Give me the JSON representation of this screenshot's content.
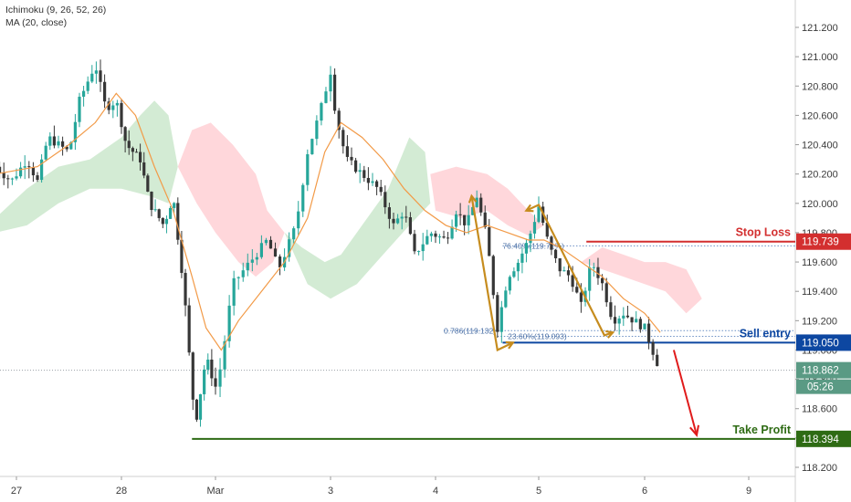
{
  "legend": {
    "ichimoku": "Ichimoku (9, 26, 52, 26)",
    "ma": "MA (20, close)"
  },
  "colors": {
    "up": "#26a69a",
    "down": "#363636",
    "ma": "#f29a47",
    "cloud_bull": "#c8e6c9",
    "cloud_bear": "#ffcdd2",
    "stop": "#d32f2f",
    "entry": "#0d47a1",
    "profit": "#2e6b14",
    "fib": "#6b8fc4",
    "pattern": "#c68c1e",
    "arrow": "#e01b1b",
    "last_price": "#5a9a84"
  },
  "chart_data": {
    "type": "candlestick",
    "y_axis_ticks": [
      "121.200",
      "121.000",
      "120.800",
      "120.600",
      "120.400",
      "120.200",
      "120.000",
      "119.800",
      "119.600",
      "119.400",
      "119.200",
      "119.000",
      "118.800",
      "118.600",
      "118.400",
      "118.200"
    ],
    "ylim": [
      118.1,
      121.3
    ],
    "x_axis_ticks": [
      {
        "label": "27",
        "x": 0
      },
      {
        "label": "28",
        "x": 1
      },
      {
        "label": "Mar",
        "x": 2
      },
      {
        "label": "3",
        "x": 3
      },
      {
        "label": "4",
        "x": 4
      },
      {
        "label": "5",
        "x": 5
      },
      {
        "label": "6",
        "x": 6
      },
      {
        "label": "9",
        "x": 7
      }
    ],
    "xlim": [
      -0.2,
      7.4
    ],
    "close_path": [
      [
        -0.2,
        120.25
      ],
      [
        -0.05,
        120.15
      ],
      [
        0.1,
        120.3
      ],
      [
        0.2,
        120.15
      ],
      [
        0.3,
        120.45
      ],
      [
        0.5,
        120.35
      ],
      [
        0.6,
        120.7
      ],
      [
        0.75,
        120.95
      ],
      [
        0.85,
        120.65
      ],
      [
        0.95,
        120.7
      ],
      [
        1.05,
        120.4
      ],
      [
        1.2,
        120.3
      ],
      [
        1.3,
        120.0
      ],
      [
        1.45,
        119.85
      ],
      [
        1.55,
        120.05
      ],
      [
        1.65,
        119.5
      ],
      [
        1.7,
        119.15
      ],
      [
        1.75,
        118.7
      ],
      [
        1.8,
        118.55
      ],
      [
        1.9,
        118.95
      ],
      [
        2.0,
        118.75
      ],
      [
        2.05,
        118.9
      ],
      [
        2.15,
        119.45
      ],
      [
        2.3,
        119.6
      ],
      [
        2.45,
        119.75
      ],
      [
        2.55,
        119.55
      ],
      [
        2.7,
        119.85
      ],
      [
        2.8,
        120.35
      ],
      [
        2.9,
        120.6
      ],
      [
        3.0,
        120.9
      ],
      [
        3.05,
        120.6
      ],
      [
        3.15,
        120.3
      ],
      [
        3.3,
        120.2
      ],
      [
        3.45,
        120.1
      ],
      [
        3.6,
        119.85
      ],
      [
        3.7,
        119.95
      ],
      [
        3.8,
        119.65
      ],
      [
        3.95,
        119.8
      ],
      [
        4.1,
        119.75
      ],
      [
        4.2,
        119.95
      ],
      [
        4.3,
        119.85
      ],
      [
        4.4,
        120.05
      ],
      [
        4.5,
        119.75
      ],
      [
        4.6,
        119.15
      ],
      [
        4.7,
        119.5
      ],
      [
        4.8,
        119.6
      ],
      [
        4.9,
        119.75
      ],
      [
        5.0,
        119.98
      ],
      [
        5.1,
        119.7
      ],
      [
        5.2,
        119.55
      ],
      [
        5.3,
        119.5
      ],
      [
        5.4,
        119.3
      ],
      [
        5.5,
        119.6
      ],
      [
        5.6,
        119.45
      ],
      [
        5.7,
        119.2
      ],
      [
        5.8,
        119.25
      ],
      [
        5.9,
        119.2
      ],
      [
        6.0,
        119.15
      ],
      [
        6.1,
        118.95
      ],
      [
        6.15,
        118.862
      ]
    ],
    "ma_path": [
      [
        -0.2,
        120.2
      ],
      [
        0.2,
        120.25
      ],
      [
        0.5,
        120.4
      ],
      [
        0.75,
        120.55
      ],
      [
        0.95,
        120.75
      ],
      [
        1.15,
        120.6
      ],
      [
        1.35,
        120.25
      ],
      [
        1.55,
        119.95
      ],
      [
        1.75,
        119.5
      ],
      [
        1.9,
        119.15
      ],
      [
        2.05,
        119.0
      ],
      [
        2.2,
        119.2
      ],
      [
        2.4,
        119.4
      ],
      [
        2.6,
        119.6
      ],
      [
        2.8,
        119.9
      ],
      [
        2.95,
        120.35
      ],
      [
        3.1,
        120.55
      ],
      [
        3.3,
        120.45
      ],
      [
        3.5,
        120.3
      ],
      [
        3.7,
        120.1
      ],
      [
        3.9,
        119.95
      ],
      [
        4.1,
        119.85
      ],
      [
        4.3,
        119.8
      ],
      [
        4.5,
        119.85
      ],
      [
        4.7,
        119.8
      ],
      [
        4.9,
        119.75
      ],
      [
        5.05,
        119.75
      ],
      [
        5.2,
        119.7
      ],
      [
        5.4,
        119.6
      ],
      [
        5.6,
        119.5
      ],
      [
        5.8,
        119.35
      ],
      [
        6.0,
        119.25
      ],
      [
        6.15,
        119.12
      ]
    ],
    "cloud": [
      {
        "trend": "bull",
        "points": [
          [
            -0.2,
            119.9
          ],
          [
            0.1,
            120.1
          ],
          [
            0.4,
            120.25
          ],
          [
            0.7,
            120.3
          ],
          [
            1.0,
            120.45
          ],
          [
            1.2,
            120.6
          ],
          [
            1.35,
            120.7
          ],
          [
            1.5,
            120.6
          ],
          [
            1.6,
            120.25
          ],
          [
            1.5,
            120.0
          ],
          [
            1.3,
            120.05
          ],
          [
            1.0,
            120.1
          ],
          [
            0.7,
            120.1
          ],
          [
            0.4,
            120.0
          ],
          [
            0.1,
            119.85
          ],
          [
            -0.2,
            119.8
          ]
        ]
      },
      {
        "trend": "bear",
        "points": [
          [
            1.6,
            120.25
          ],
          [
            1.75,
            120.5
          ],
          [
            1.95,
            120.55
          ],
          [
            2.15,
            120.4
          ],
          [
            2.35,
            120.2
          ],
          [
            2.45,
            119.95
          ],
          [
            2.6,
            119.8
          ],
          [
            2.5,
            119.6
          ],
          [
            2.35,
            119.5
          ],
          [
            2.2,
            119.6
          ],
          [
            2.0,
            119.8
          ],
          [
            1.8,
            120.0
          ]
        ]
      },
      {
        "trend": "bull",
        "points": [
          [
            2.6,
            119.8
          ],
          [
            2.75,
            119.7
          ],
          [
            2.95,
            119.6
          ],
          [
            3.1,
            119.65
          ],
          [
            3.3,
            119.85
          ],
          [
            3.55,
            120.1
          ],
          [
            3.75,
            120.45
          ],
          [
            3.9,
            120.35
          ],
          [
            3.95,
            120.0
          ],
          [
            3.75,
            119.85
          ],
          [
            3.5,
            119.65
          ],
          [
            3.25,
            119.45
          ],
          [
            3.0,
            119.35
          ],
          [
            2.8,
            119.45
          ]
        ]
      },
      {
        "trend": "bear",
        "points": [
          [
            3.95,
            120.2
          ],
          [
            4.2,
            120.25
          ],
          [
            4.5,
            120.2
          ],
          [
            4.7,
            120.1
          ],
          [
            4.9,
            119.95
          ],
          [
            5.05,
            119.85
          ],
          [
            4.9,
            119.78
          ],
          [
            4.7,
            119.85
          ],
          [
            4.5,
            119.95
          ],
          [
            4.25,
            119.9
          ],
          [
            4.0,
            119.95
          ]
        ]
      },
      {
        "trend": "bear",
        "points": [
          [
            5.4,
            119.6
          ],
          [
            5.6,
            119.7
          ],
          [
            5.8,
            119.65
          ],
          [
            6.0,
            119.6
          ],
          [
            6.2,
            119.6
          ],
          [
            6.4,
            119.55
          ],
          [
            6.55,
            119.35
          ],
          [
            6.4,
            119.25
          ],
          [
            6.2,
            119.4
          ],
          [
            6.0,
            119.45
          ],
          [
            5.8,
            119.5
          ],
          [
            5.6,
            119.55
          ]
        ]
      }
    ],
    "zigzag_1": [
      [
        4.35,
        120.05
      ],
      [
        4.6,
        119.0
      ],
      [
        4.75,
        119.05
      ]
    ],
    "zigzag_2": [
      [
        4.88,
        119.95
      ],
      [
        5.0,
        119.99
      ],
      [
        5.62,
        119.1
      ],
      [
        5.7,
        119.12
      ]
    ],
    "levels": [
      {
        "name": "Stop Loss",
        "value": 119.739,
        "label": "119.739",
        "kind": "stop"
      },
      {
        "name": "Sell entry",
        "value": 119.05,
        "label": "119.050",
        "kind": "entry"
      },
      {
        "name": "Take Profit",
        "value": 118.394,
        "label": "118.394",
        "kind": "profit"
      }
    ],
    "fib_labels": [
      {
        "text": "76.40%(119.71%)",
        "x": 4.65,
        "y": 119.71
      },
      {
        "text": "0.786(119.132)",
        "x": 4.08,
        "y": 119.13
      },
      {
        "text": "23.60%(119.093)",
        "x": 4.7,
        "y": 119.093
      }
    ],
    "last_price": {
      "value": 118.862,
      "label": "118.862",
      "countdown": "05:26"
    }
  }
}
